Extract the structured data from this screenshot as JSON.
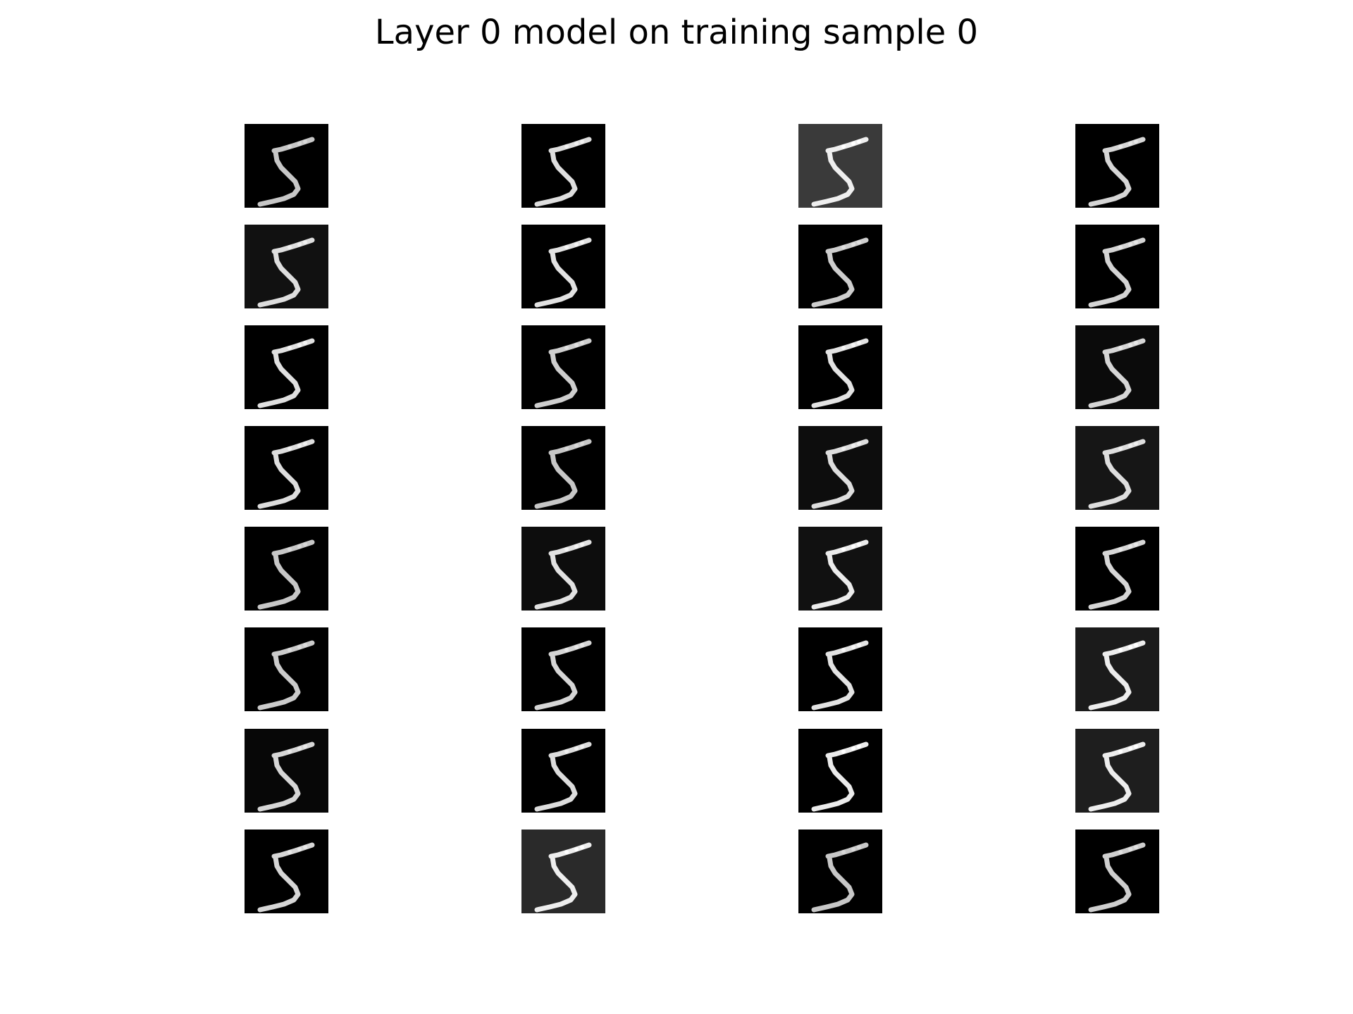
{
  "title": "Layer 0 model on training sample 0",
  "grid": {
    "rows": 8,
    "cols": 4,
    "tiles": [
      {
        "bg": "#000000",
        "fill": "#d8d8d8"
      },
      {
        "bg": "#000000",
        "fill": "#f2f2f2"
      },
      {
        "bg": "#3a3a3a",
        "fill": "#ffffff"
      },
      {
        "bg": "#000000",
        "fill": "#e8e8e8"
      },
      {
        "bg": "#111111",
        "fill": "#f0f0f0"
      },
      {
        "bg": "#000000",
        "fill": "#f5f5f5"
      },
      {
        "bg": "#000000",
        "fill": "#e0e0e0"
      },
      {
        "bg": "#000000",
        "fill": "#e6e6e6"
      },
      {
        "bg": "#000000",
        "fill": "#f3f3f3"
      },
      {
        "bg": "#000000",
        "fill": "#e0e0e0"
      },
      {
        "bg": "#000000",
        "fill": "#f6f6f6"
      },
      {
        "bg": "#0b0b0b",
        "fill": "#e8e8e8"
      },
      {
        "bg": "#000000",
        "fill": "#f0f0f0"
      },
      {
        "bg": "#000000",
        "fill": "#d8d8d8"
      },
      {
        "bg": "#0d0d0d",
        "fill": "#f0f0f0"
      },
      {
        "bg": "#161616",
        "fill": "#f0f0f0"
      },
      {
        "bg": "#000000",
        "fill": "#d8d8d8"
      },
      {
        "bg": "#0d0d0d",
        "fill": "#f4f4f4"
      },
      {
        "bg": "#111111",
        "fill": "#ffffff"
      },
      {
        "bg": "#000000",
        "fill": "#e8e8e8"
      },
      {
        "bg": "#000000",
        "fill": "#dcdcdc"
      },
      {
        "bg": "#000000",
        "fill": "#e8e8e8"
      },
      {
        "bg": "#000000",
        "fill": "#f6f6f6"
      },
      {
        "bg": "#1b1b1b",
        "fill": "#ffffff"
      },
      {
        "bg": "#070707",
        "fill": "#e8e8e8"
      },
      {
        "bg": "#000000",
        "fill": "#f0f0f0"
      },
      {
        "bg": "#000000",
        "fill": "#ffffff"
      },
      {
        "bg": "#1e1e1e",
        "fill": "#ffffff"
      },
      {
        "bg": "#000000",
        "fill": "#e8e8e8"
      },
      {
        "bg": "#2a2a2a",
        "fill": "#ffffff"
      },
      {
        "bg": "#000000",
        "fill": "#d8d8d8"
      },
      {
        "bg": "#000000",
        "fill": "#e0e0e0"
      }
    ]
  }
}
